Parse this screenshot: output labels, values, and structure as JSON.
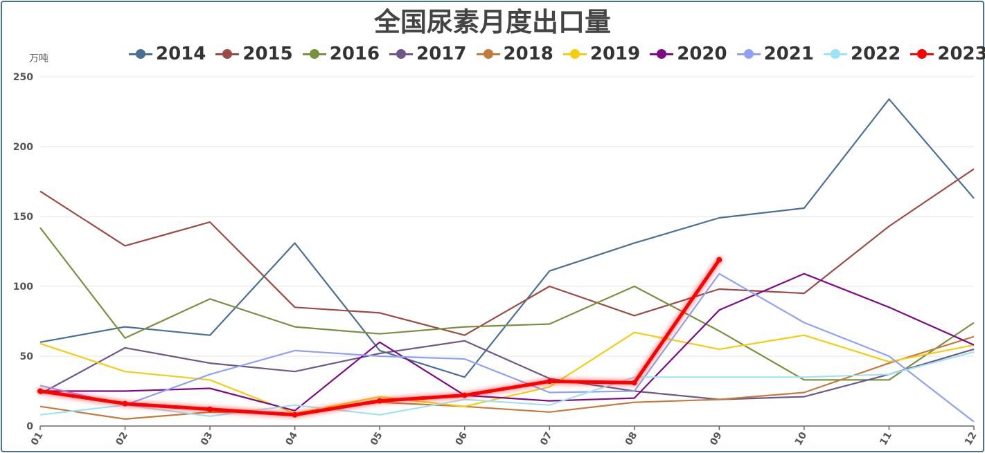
{
  "chart_data": {
    "type": "line",
    "title": "全国尿素月度出口量",
    "ylabel": "万吨",
    "xlabel": "",
    "ylim": [
      0,
      250
    ],
    "yticks": [
      0,
      50,
      100,
      150,
      200,
      250
    ],
    "grid": true,
    "legend_position": "top-center",
    "categories": [
      "01",
      "02",
      "03",
      "04",
      "05",
      "06",
      "07",
      "08",
      "09",
      "10",
      "11",
      "12"
    ],
    "series": [
      {
        "name": "2014",
        "color": "#4a6f95",
        "values": [
          60,
          71,
          65,
          131,
          54,
          35,
          111,
          131,
          149,
          156,
          234,
          163
        ]
      },
      {
        "name": "2015",
        "color": "#9c4a44",
        "values": [
          168,
          129,
          146,
          85,
          81,
          65,
          100,
          79,
          98,
          95,
          143,
          184
        ]
      },
      {
        "name": "2016",
        "color": "#77913e",
        "values": [
          142,
          63,
          91,
          71,
          66,
          71,
          73,
          100,
          68,
          33,
          33,
          74
        ]
      },
      {
        "name": "2017",
        "color": "#6e5686",
        "values": [
          23,
          56,
          45,
          39,
          52,
          61,
          34,
          25,
          19,
          21,
          37,
          55
        ]
      },
      {
        "name": "2018",
        "color": "#c57a3b",
        "values": [
          14,
          5,
          10,
          9,
          17,
          14,
          10,
          17,
          19,
          24,
          45,
          64
        ]
      },
      {
        "name": "2019",
        "color": "#f5cc0e",
        "values": [
          59,
          39,
          33,
          9,
          21,
          14,
          28,
          67,
          55,
          65,
          46,
          58
        ]
      },
      {
        "name": "2020",
        "color": "#7f0a85",
        "values": [
          25,
          25,
          27,
          11,
          60,
          22,
          18,
          20,
          83,
          109,
          85,
          58
        ]
      },
      {
        "name": "2021",
        "color": "#8fa1f5",
        "values": [
          29,
          15,
          37,
          54,
          50,
          48,
          24,
          25,
          109,
          74,
          50,
          3
        ]
      },
      {
        "name": "2022",
        "color": "#9ee2f5",
        "values": [
          8,
          15,
          7,
          15,
          8,
          19,
          15,
          35,
          35,
          35,
          37,
          53
        ]
      },
      {
        "name": "2023",
        "color": "#ff0000",
        "values": [
          25,
          16,
          12,
          8,
          18,
          22,
          32,
          31,
          119,
          null,
          null,
          null
        ],
        "emphasis": true
      }
    ]
  }
}
